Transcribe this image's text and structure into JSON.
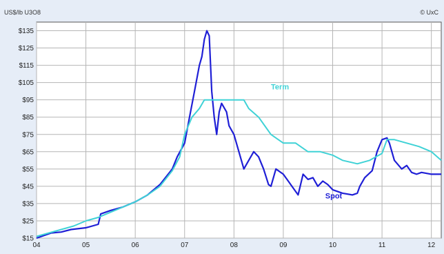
{
  "chart_data": {
    "type": "line",
    "unit_label": "US$/lb U3O8",
    "credit": "© UxC",
    "ylim": [
      15,
      140
    ],
    "y_ticks": [
      15,
      25,
      35,
      45,
      55,
      65,
      75,
      85,
      95,
      105,
      115,
      125,
      135
    ],
    "y_tick_labels": [
      "$15",
      "$25",
      "$35",
      "$45",
      "$55",
      "$65",
      "$75",
      "$85",
      "$95",
      "$105",
      "$115",
      "$125",
      "$135"
    ],
    "xlim": [
      2004.0,
      2012.2
    ],
    "x_ticks": [
      2004,
      2005,
      2006,
      2007,
      2008,
      2009,
      2010,
      2011,
      2012
    ],
    "x_tick_labels": [
      "04",
      "05",
      "06",
      "07",
      "08",
      "09",
      "10",
      "11",
      "12"
    ],
    "grid": true,
    "series": [
      {
        "name": "Spot",
        "color": "#1f1fd6",
        "label_at": [
          2009.85,
          38
        ],
        "x": [
          2004.0,
          2004.1,
          2004.3,
          2004.5,
          2004.7,
          2005.0,
          2005.25,
          2005.3,
          2005.5,
          2005.75,
          2006.0,
          2006.25,
          2006.5,
          2006.75,
          2006.85,
          2007.0,
          2007.1,
          2007.2,
          2007.3,
          2007.35,
          2007.4,
          2007.45,
          2007.5,
          2007.55,
          2007.6,
          2007.65,
          2007.7,
          2007.75,
          2007.85,
          2007.9,
          2008.0,
          2008.05,
          2008.1,
          2008.2,
          2008.3,
          2008.4,
          2008.5,
          2008.6,
          2008.7,
          2008.75,
          2008.85,
          2009.0,
          2009.1,
          2009.2,
          2009.3,
          2009.4,
          2009.5,
          2009.6,
          2009.7,
          2009.8,
          2009.9,
          2010.0,
          2010.2,
          2010.4,
          2010.5,
          2010.55,
          2010.65,
          2010.8,
          2010.9,
          2011.0,
          2011.1,
          2011.15,
          2011.25,
          2011.4,
          2011.5,
          2011.6,
          2011.7,
          2011.8,
          2012.0,
          2012.2
        ],
        "y": [
          15,
          16,
          18,
          18.5,
          20,
          21,
          23,
          29,
          31,
          33,
          36,
          40,
          46,
          55,
          62,
          70,
          85,
          100,
          115,
          120,
          130,
          135,
          132,
          100,
          85,
          75,
          88,
          93,
          88,
          80,
          75,
          70,
          65,
          55,
          60,
          65,
          62,
          55,
          46,
          45,
          55,
          52,
          48,
          44,
          40,
          52,
          49,
          50,
          45,
          48,
          46,
          43,
          41,
          40,
          41,
          45,
          50,
          54,
          65,
          72,
          73,
          70,
          60,
          55,
          57,
          53,
          52,
          53,
          52,
          52
        ]
      },
      {
        "name": "Term",
        "color": "#3fd2d6",
        "label_at": [
          2008.75,
          101
        ],
        "x": [
          2004.0,
          2004.25,
          2004.5,
          2004.75,
          2005.0,
          2005.25,
          2005.5,
          2005.75,
          2006.0,
          2006.25,
          2006.5,
          2006.75,
          2006.9,
          2007.0,
          2007.15,
          2007.3,
          2007.4,
          2007.75,
          2008.0,
          2008.2,
          2008.3,
          2008.5,
          2008.75,
          2009.0,
          2009.25,
          2009.5,
          2009.75,
          2010.0,
          2010.2,
          2010.5,
          2010.75,
          2011.0,
          2011.1,
          2011.25,
          2011.5,
          2011.75,
          2012.0,
          2012.2
        ],
        "y": [
          16,
          18,
          20,
          22,
          25,
          27,
          30,
          33,
          36,
          40,
          45,
          54,
          62,
          75,
          85,
          90,
          95,
          95,
          95,
          95,
          90,
          85,
          75,
          70,
          70,
          65,
          65,
          63,
          60,
          58,
          60,
          64,
          72,
          72,
          70,
          68,
          65,
          60
        ]
      }
    ]
  }
}
